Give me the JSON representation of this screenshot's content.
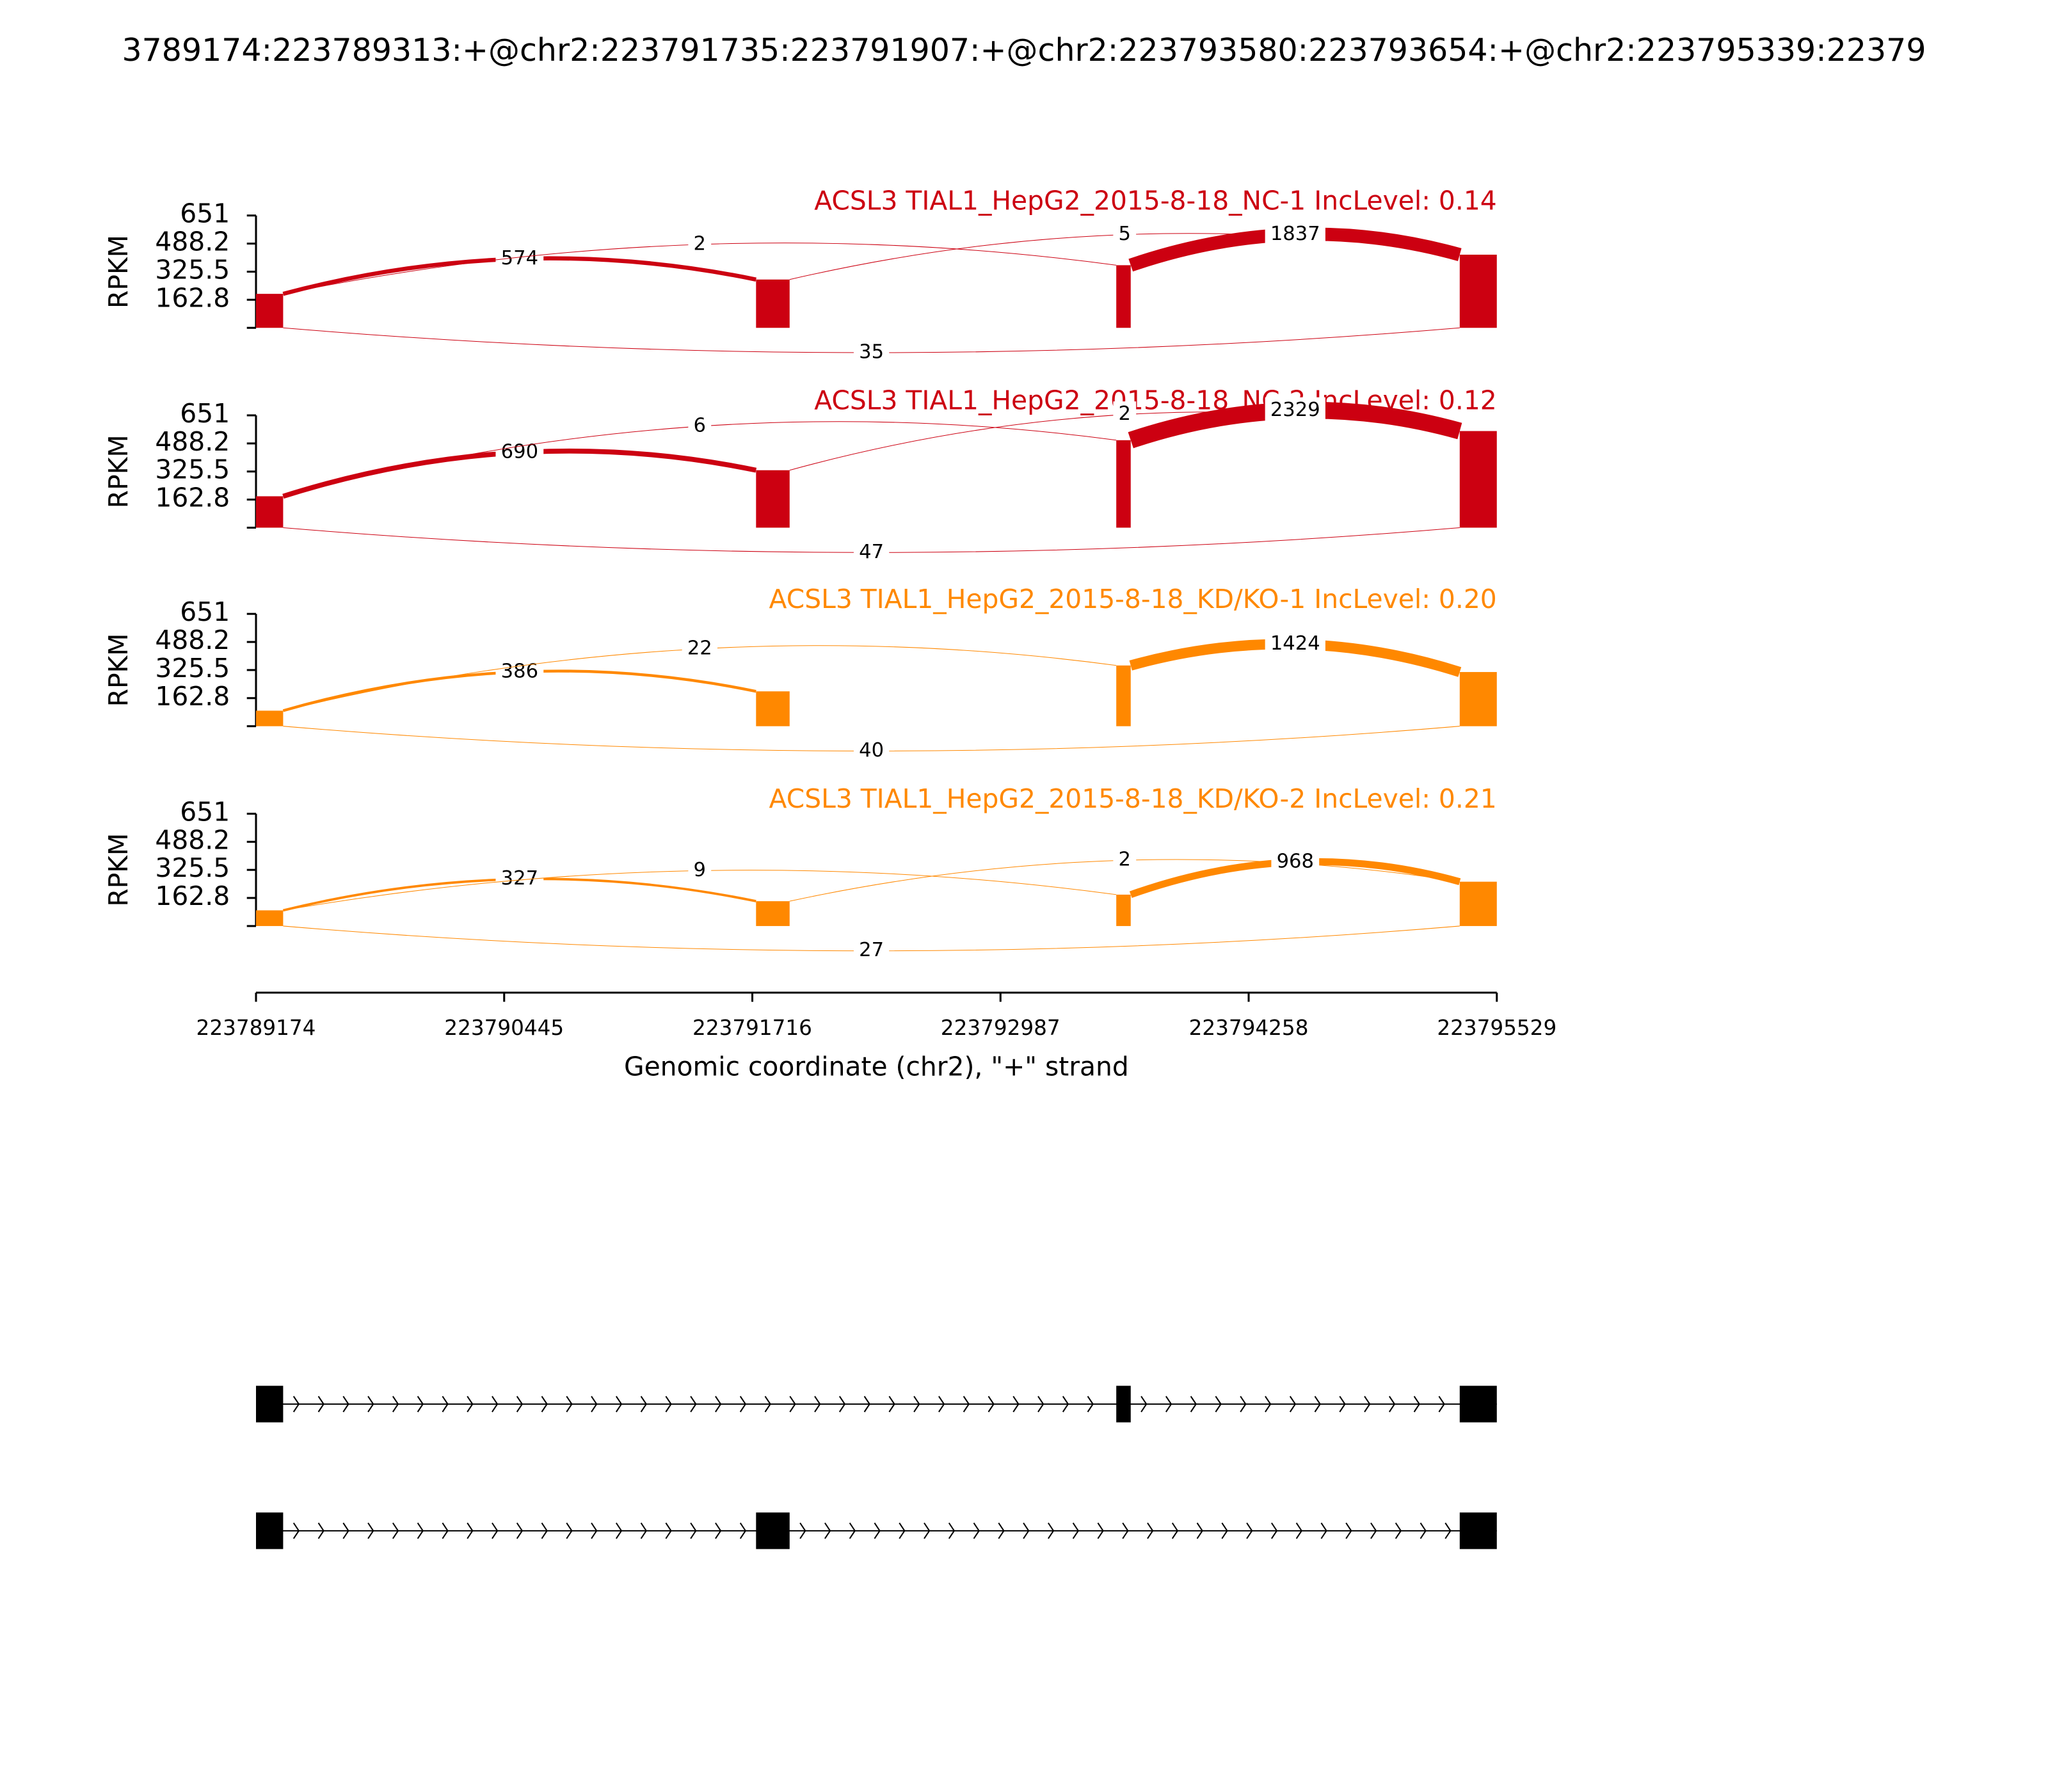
{
  "chart_data": {
    "type": "sashimi",
    "title": "3789174:223789313:+@chr2:223791735:223791907:+@chr2:223793580:223793654:+@chr2:223795339:22379",
    "xlabel": "Genomic coordinate (chr2), \"+\" strand",
    "xlim": [
      223789174,
      223795529
    ],
    "xticks": [
      223789174,
      223790445,
      223791716,
      223792987,
      223794258,
      223795529
    ],
    "exons": [
      [
        223789174,
        223789313
      ],
      [
        223791735,
        223791907
      ],
      [
        223793580,
        223793654
      ],
      [
        223795339,
        223795529
      ]
    ],
    "tracks": [
      {
        "title": "ACSL3 TIAL1_HepG2_2015-8-18_NC-1 IncLevel: 0.14",
        "color": "#cc0011",
        "ylabel": "RPKM",
        "ylim": [
          0,
          651
        ],
        "yticks": [
          162.8,
          325.5,
          488.2,
          651
        ],
        "coverage": [
          197,
          280,
          363,
          424
        ],
        "junctions": [
          {
            "start": 223789313,
            "end": 223791735,
            "count": 574,
            "below": false
          },
          {
            "start": 223789313,
            "end": 223793580,
            "count": 2,
            "below": false
          },
          {
            "start": 223791907,
            "end": 223795339,
            "count": 5,
            "below": false
          },
          {
            "start": 223793654,
            "end": 223795339,
            "count": 1837,
            "below": false
          },
          {
            "start": 223789313,
            "end": 223795339,
            "count": 35,
            "below": true
          }
        ]
      },
      {
        "title": "ACSL3 TIAL1_HepG2_2015-8-18_NC-2 IncLevel: 0.12",
        "color": "#cc0011",
        "ylabel": "RPKM",
        "ylim": [
          0,
          651
        ],
        "yticks": [
          162.8,
          325.5,
          488.2,
          651
        ],
        "coverage": [
          182,
          333,
          507,
          560
        ],
        "junctions": [
          {
            "start": 223789313,
            "end": 223791735,
            "count": 690,
            "below": false
          },
          {
            "start": 223789313,
            "end": 223793580,
            "count": 6,
            "below": false
          },
          {
            "start": 223791907,
            "end": 223795339,
            "count": 2,
            "below": false
          },
          {
            "start": 223793654,
            "end": 223795339,
            "count": 2329,
            "below": false
          },
          {
            "start": 223789313,
            "end": 223795339,
            "count": 47,
            "below": true
          }
        ]
      },
      {
        "title": "ACSL3 TIAL1_HepG2_2015-8-18_KD/KO-1 IncLevel: 0.20",
        "color": "#ff8800",
        "ylabel": "RPKM",
        "ylim": [
          0,
          651
        ],
        "yticks": [
          162.8,
          325.5,
          488.2,
          651
        ],
        "coverage": [
          90,
          202,
          352,
          314
        ],
        "junctions": [
          {
            "start": 223789313,
            "end": 223791735,
            "count": 386,
            "below": false
          },
          {
            "start": 223789313,
            "end": 223793580,
            "count": 22,
            "below": false
          },
          {
            "start": 223793654,
            "end": 223795339,
            "count": 1424,
            "below": false
          },
          {
            "start": 223789313,
            "end": 223795339,
            "count": 40,
            "below": true
          }
        ]
      },
      {
        "title": "ACSL3 TIAL1_HepG2_2015-8-18_KD/KO-2 IncLevel: 0.21",
        "color": "#ff8800",
        "ylabel": "RPKM",
        "ylim": [
          0,
          651
        ],
        "yticks": [
          162.8,
          325.5,
          488.2,
          651
        ],
        "coverage": [
          91,
          144,
          182,
          257
        ],
        "junctions": [
          {
            "start": 223789313,
            "end": 223791735,
            "count": 327,
            "below": false
          },
          {
            "start": 223789313,
            "end": 223793580,
            "count": 9,
            "below": false
          },
          {
            "start": 223791907,
            "end": 223795339,
            "count": 2,
            "below": false
          },
          {
            "start": 223793654,
            "end": 223795339,
            "count": 968,
            "below": false
          },
          {
            "start": 223789313,
            "end": 223795339,
            "count": 27,
            "below": true
          }
        ]
      }
    ],
    "isoforms": [
      [
        [
          223789174,
          223789313
        ],
        [
          223793580,
          223793654
        ],
        [
          223795339,
          223795529
        ]
      ],
      [
        [
          223789174,
          223789313
        ],
        [
          223791735,
          223791907
        ],
        [
          223795339,
          223795529
        ]
      ]
    ]
  }
}
